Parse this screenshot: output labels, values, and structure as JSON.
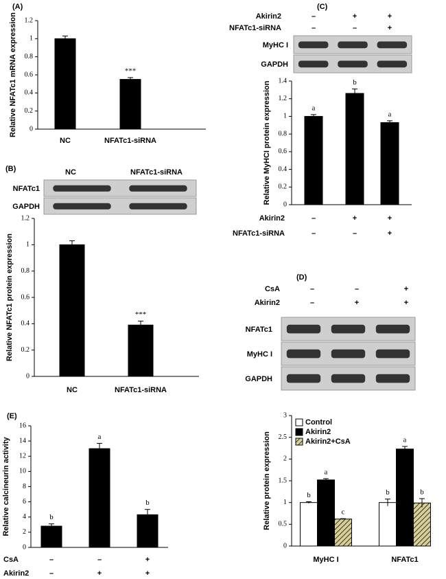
{
  "chart_data": [
    {
      "type": "bar",
      "panel": "(A)",
      "ylabel": "Relative NFATc1 mRNA expression",
      "categories": [
        "NC",
        "NFATc1-siRNA"
      ],
      "values": [
        1.0,
        0.55
      ],
      "errors": [
        0.03,
        0.02
      ],
      "annotations": [
        null,
        "***"
      ],
      "color": "#000000",
      "ylim": [
        0,
        1.2
      ],
      "yticks": [
        0,
        0.2,
        0.4,
        0.6,
        0.8,
        1,
        1.2
      ]
    },
    {
      "type": "bar",
      "panel": "(B)",
      "ylabel": "Relative NFATc1 protein expression",
      "blot_header": [
        "NC",
        "NFATc1-siRNA"
      ],
      "blot_rows": [
        "NFATc1",
        "GAPDH"
      ],
      "categories": [
        "NC",
        "NFATc1-siRNA"
      ],
      "values": [
        1.0,
        0.39
      ],
      "errors": [
        0.03,
        0.03
      ],
      "annotations": [
        null,
        "***"
      ],
      "color": "#000000",
      "ylim": [
        0,
        1.2
      ],
      "yticks": [
        0,
        0.2,
        0.4,
        0.6,
        0.8,
        1,
        1.2
      ]
    },
    {
      "type": "bar",
      "panel": "(C)",
      "ylabel": "Relative MyHCI protein expression",
      "conditions": [
        {
          "name": "Akirin2",
          "marks": [
            "–",
            "+",
            "+"
          ]
        },
        {
          "name": "NFATc1-siRNA",
          "marks": [
            "–",
            "–",
            "+"
          ]
        }
      ],
      "blot_rows": [
        "MyHC I",
        "GAPDH"
      ],
      "values": [
        1.0,
        1.26,
        0.93
      ],
      "errors": [
        0.02,
        0.05,
        0.02
      ],
      "annotations": [
        "a",
        "b",
        "a"
      ],
      "color": "#000000",
      "ylim": [
        0,
        1.4
      ],
      "yticks": [
        0,
        0.2,
        0.4,
        0.6,
        0.8,
        1,
        1.2,
        1.4
      ]
    },
    {
      "type": "grouped-bar",
      "panel": "(D)",
      "ylabel": "Relative protein expression",
      "conditions": [
        {
          "name": "CsA",
          "marks": [
            "–",
            "–",
            "+"
          ]
        },
        {
          "name": "Akirin2",
          "marks": [
            "–",
            "+",
            "+"
          ]
        }
      ],
      "blot_rows": [
        "NFATc1",
        "MyHC I",
        "GAPDH"
      ],
      "categories": [
        "MyHC I",
        "NFATc1"
      ],
      "series": [
        {
          "name": "Control",
          "color": "#ffffff",
          "values": [
            1.0,
            1.0
          ],
          "errors": [
            0.02,
            0.08
          ],
          "annotations": [
            "b",
            "b"
          ]
        },
        {
          "name": "Akirin2",
          "color": "#000000",
          "values": [
            1.52,
            2.23
          ],
          "errors": [
            0.03,
            0.06
          ],
          "annotations": [
            "a",
            "a"
          ]
        },
        {
          "name": "Akirin2+CsA",
          "color": "#d8cf98",
          "hatch": true,
          "values": [
            0.62,
            0.99
          ],
          "errors": [
            0.01,
            0.1
          ],
          "annotations": [
            "c",
            "b"
          ]
        }
      ],
      "legend": "top-left",
      "ylim": [
        0,
        3
      ],
      "yticks": [
        0,
        0.5,
        1,
        1.5,
        2,
        2.5,
        3
      ]
    },
    {
      "type": "bar",
      "panel": "(E)",
      "ylabel": "Relative calcineurin activity",
      "conditions": [
        {
          "name": "CsA",
          "marks": [
            "–",
            "–",
            "+"
          ]
        },
        {
          "name": "Akirin2",
          "marks": [
            "–",
            "+",
            "+"
          ]
        }
      ],
      "values": [
        2.8,
        13.0,
        4.3
      ],
      "errors": [
        0.3,
        0.7,
        0.7
      ],
      "annotations": [
        "b",
        "a",
        "b"
      ],
      "color": "#000000",
      "ylim": [
        0,
        16
      ],
      "yticks": [
        0,
        2,
        4,
        6,
        8,
        10,
        12,
        14,
        16
      ]
    }
  ]
}
